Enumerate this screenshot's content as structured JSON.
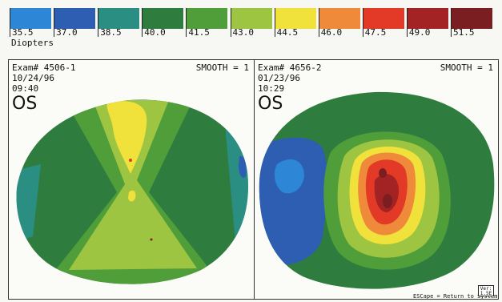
{
  "scale": {
    "units": "Diopters",
    "steps": [
      {
        "label": "35.5",
        "color": "#2d86d6"
      },
      {
        "label": "37.0",
        "color": "#2d5eb2"
      },
      {
        "label": "38.5",
        "color": "#2a8f82"
      },
      {
        "label": "40.0",
        "color": "#2e7d3e"
      },
      {
        "label": "41.5",
        "color": "#4f9e3a"
      },
      {
        "label": "43.0",
        "color": "#9dc541"
      },
      {
        "label": "44.5",
        "color": "#f1e13b"
      },
      {
        "label": "46.0",
        "color": "#ef8a3a"
      },
      {
        "label": "47.5",
        "color": "#e23a26"
      },
      {
        "label": "49.0",
        "color": "#a32324"
      },
      {
        "label": "51.5",
        "color": "#7a1e22"
      }
    ]
  },
  "left_map": {
    "exam": "Exam# 4506-1",
    "date": "10/24/96",
    "time": "09:40",
    "eye": "OS",
    "smooth": "SMOOTH = 1"
  },
  "right_map": {
    "exam": "Exam# 4656-2",
    "date": "01/23/96",
    "time": "10:29",
    "eye": "OS",
    "smooth": "SMOOTH = 1",
    "footer_message": "ESCape = Return to System Menu.",
    "version_label": "Ver:",
    "version_value": "1.5E"
  }
}
